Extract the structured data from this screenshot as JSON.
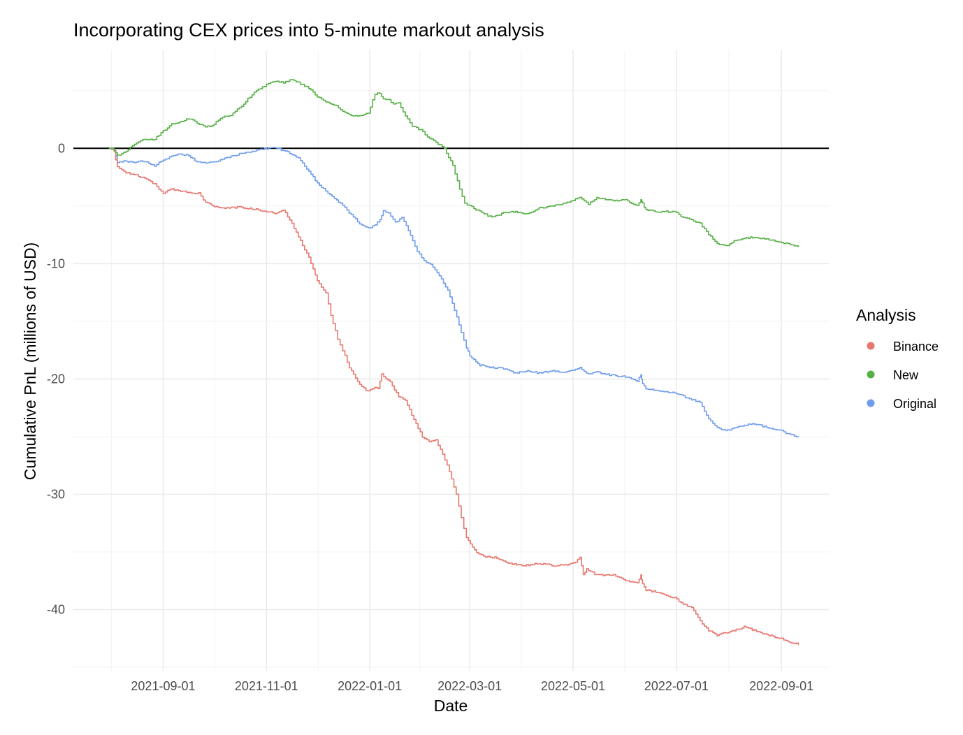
{
  "chart_data": {
    "type": "line",
    "title": "Incorporating CEX prices into 5-minute markout analysis",
    "xlabel": "Date",
    "ylabel": "Cumulative PnL (millions of USD)",
    "x_ticks": [
      "2021-09-01",
      "2021-11-01",
      "2022-01-01",
      "2022-03-01",
      "2022-05-01",
      "2022-07-01",
      "2022-09-01"
    ],
    "y_ticks": [
      0,
      -10,
      -20,
      -30,
      -40
    ],
    "xlim": [
      "2021-07-10",
      "2022-09-29"
    ],
    "ylim": [
      -45.3,
      8.5
    ],
    "hline": 0,
    "legend": {
      "title": "Analysis",
      "position": "right"
    },
    "series": [
      {
        "name": "Binance",
        "color": "#E8776F",
        "x": [
          "2021-07-31",
          "2021-08-03",
          "2021-08-05",
          "2021-08-10",
          "2021-08-20",
          "2021-08-27",
          "2021-09-01",
          "2021-09-05",
          "2021-09-15",
          "2021-09-22",
          "2021-09-26",
          "2021-10-01",
          "2021-10-06",
          "2021-10-16",
          "2021-10-26",
          "2021-11-01",
          "2021-11-06",
          "2021-11-11",
          "2021-11-16",
          "2021-11-21",
          "2021-11-26",
          "2021-12-01",
          "2021-12-06",
          "2021-12-09",
          "2021-12-13",
          "2021-12-16",
          "2021-12-20",
          "2021-12-26",
          "2021-12-31",
          "2022-01-04",
          "2022-01-06",
          "2022-01-08",
          "2022-01-13",
          "2022-01-18",
          "2022-01-22",
          "2022-01-27",
          "2022-02-01",
          "2022-02-05",
          "2022-02-09",
          "2022-02-13",
          "2022-02-17",
          "2022-02-21",
          "2022-02-24",
          "2022-02-27",
          "2022-03-05",
          "2022-03-09",
          "2022-03-17",
          "2022-03-25",
          "2022-04-01",
          "2022-04-11",
          "2022-04-21",
          "2022-05-01",
          "2022-05-05",
          "2022-05-07",
          "2022-05-09",
          "2022-05-15",
          "2022-05-25",
          "2022-06-01",
          "2022-06-08",
          "2022-06-10",
          "2022-06-11",
          "2022-06-13",
          "2022-06-20",
          "2022-06-30",
          "2022-07-05",
          "2022-07-10",
          "2022-07-15",
          "2022-07-20",
          "2022-07-25",
          "2022-07-30",
          "2022-08-04",
          "2022-08-10",
          "2022-08-16",
          "2022-08-21",
          "2022-08-27",
          "2022-09-01",
          "2022-09-05",
          "2022-09-11"
        ],
        "values": [
          0,
          -0.3,
          -1.6,
          -2.1,
          -2.5,
          -3.1,
          -3.9,
          -3.5,
          -3.8,
          -3.9,
          -4.7,
          -5.0,
          -5.2,
          -5.1,
          -5.3,
          -5.5,
          -5.6,
          -5.3,
          -6.5,
          -8.0,
          -9.5,
          -11.5,
          -12.5,
          -14.5,
          -16.5,
          -17.5,
          -19.0,
          -20.5,
          -21.1,
          -20.7,
          -20.9,
          -19.6,
          -20.3,
          -21.5,
          -21.9,
          -23.5,
          -25.0,
          -25.5,
          -25.3,
          -26.5,
          -28.0,
          -30.0,
          -32.0,
          -33.8,
          -35.0,
          -35.4,
          -35.5,
          -36.0,
          -36.2,
          -36.0,
          -36.2,
          -36.0,
          -35.5,
          -37.0,
          -36.5,
          -37.0,
          -37.0,
          -37.5,
          -37.7,
          -37.0,
          -37.8,
          -38.3,
          -38.5,
          -39.0,
          -39.5,
          -39.8,
          -41.0,
          -41.8,
          -42.2,
          -42.0,
          -41.8,
          -41.5,
          -41.8,
          -42.1,
          -42.3,
          -42.5,
          -42.8,
          -43.0
        ]
      },
      {
        "name": "New",
        "color": "#57B046",
        "x": [
          "2021-07-31",
          "2021-08-03",
          "2021-08-05",
          "2021-08-10",
          "2021-08-15",
          "2021-08-20",
          "2021-08-27",
          "2021-09-01",
          "2021-09-06",
          "2021-09-11",
          "2021-09-16",
          "2021-09-21",
          "2021-09-26",
          "2021-10-01",
          "2021-10-06",
          "2021-10-11",
          "2021-10-16",
          "2021-10-21",
          "2021-10-26",
          "2021-11-01",
          "2021-11-06",
          "2021-11-11",
          "2021-11-16",
          "2021-11-21",
          "2021-11-26",
          "2021-12-01",
          "2021-12-06",
          "2021-12-11",
          "2021-12-16",
          "2021-12-21",
          "2021-12-26",
          "2021-12-31",
          "2022-01-04",
          "2022-01-07",
          "2022-01-09",
          "2022-01-12",
          "2022-01-15",
          "2022-01-18",
          "2022-01-22",
          "2022-01-26",
          "2022-01-31",
          "2022-02-04",
          "2022-02-09",
          "2022-02-14",
          "2022-02-19",
          "2022-02-23",
          "2022-02-26",
          "2022-03-01",
          "2022-03-07",
          "2022-03-14",
          "2022-03-21",
          "2022-03-28",
          "2022-04-04",
          "2022-04-11",
          "2022-04-18",
          "2022-04-25",
          "2022-05-01",
          "2022-05-05",
          "2022-05-10",
          "2022-05-15",
          "2022-05-20",
          "2022-05-25",
          "2022-06-01",
          "2022-06-08",
          "2022-06-10",
          "2022-06-11",
          "2022-06-13",
          "2022-06-20",
          "2022-06-30",
          "2022-07-05",
          "2022-07-10",
          "2022-07-15",
          "2022-07-20",
          "2022-07-25",
          "2022-07-30",
          "2022-08-04",
          "2022-08-10",
          "2022-08-16",
          "2022-08-21",
          "2022-08-27",
          "2022-09-01",
          "2022-09-05",
          "2022-09-11"
        ],
        "values": [
          0,
          -0.1,
          -0.6,
          -0.3,
          0.4,
          0.7,
          0.8,
          1.5,
          2.1,
          2.3,
          2.6,
          2.2,
          1.8,
          2.1,
          2.7,
          2.9,
          3.5,
          4.3,
          5.0,
          5.5,
          5.8,
          5.7,
          6.0,
          5.6,
          5.2,
          4.5,
          4.0,
          3.8,
          3.2,
          2.9,
          2.8,
          3.1,
          4.7,
          4.8,
          4.3,
          4.2,
          3.8,
          4.0,
          2.8,
          1.9,
          1.6,
          1.0,
          0.5,
          0.0,
          -1.5,
          -3.5,
          -4.8,
          -5.0,
          -5.5,
          -6.0,
          -5.6,
          -5.5,
          -5.7,
          -5.2,
          -5.0,
          -4.8,
          -4.5,
          -4.2,
          -4.8,
          -4.3,
          -4.4,
          -4.5,
          -4.5,
          -5.0,
          -4.5,
          -4.8,
          -5.3,
          -5.5,
          -5.5,
          -6.0,
          -6.2,
          -6.5,
          -7.5,
          -8.2,
          -8.5,
          -8.0,
          -7.8,
          -7.7,
          -7.8,
          -8.0,
          -8.2,
          -8.3,
          -8.5
        ]
      },
      {
        "name": "Original",
        "color": "#6F9CEC",
        "x": [
          "2021-07-31",
          "2021-08-03",
          "2021-08-05",
          "2021-08-10",
          "2021-08-15",
          "2021-08-20",
          "2021-08-27",
          "2021-09-01",
          "2021-09-06",
          "2021-09-11",
          "2021-09-16",
          "2021-09-21",
          "2021-09-26",
          "2021-10-01",
          "2021-10-06",
          "2021-10-11",
          "2021-10-16",
          "2021-10-21",
          "2021-10-26",
          "2021-11-01",
          "2021-11-06",
          "2021-11-11",
          "2021-11-16",
          "2021-11-21",
          "2021-11-26",
          "2021-12-01",
          "2021-12-06",
          "2021-12-11",
          "2021-12-16",
          "2021-12-21",
          "2021-12-26",
          "2021-12-31",
          "2022-01-04",
          "2022-01-07",
          "2022-01-09",
          "2022-01-12",
          "2022-01-16",
          "2022-01-20",
          "2022-01-25",
          "2022-01-29",
          "2022-02-02",
          "2022-02-06",
          "2022-02-11",
          "2022-02-16",
          "2022-02-20",
          "2022-02-24",
          "2022-02-27",
          "2022-03-01",
          "2022-03-07",
          "2022-03-14",
          "2022-03-21",
          "2022-03-28",
          "2022-04-04",
          "2022-04-11",
          "2022-04-18",
          "2022-04-25",
          "2022-05-01",
          "2022-05-05",
          "2022-05-10",
          "2022-05-15",
          "2022-05-20",
          "2022-05-25",
          "2022-06-01",
          "2022-06-08",
          "2022-06-10",
          "2022-06-11",
          "2022-06-13",
          "2022-06-20",
          "2022-06-30",
          "2022-07-05",
          "2022-07-10",
          "2022-07-15",
          "2022-07-20",
          "2022-07-25",
          "2022-07-30",
          "2022-08-04",
          "2022-08-10",
          "2022-08-16",
          "2022-08-21",
          "2022-08-27",
          "2022-09-01",
          "2022-09-05",
          "2022-09-11"
        ],
        "values": [
          0,
          -0.2,
          -1.2,
          -1.1,
          -1.2,
          -1.1,
          -1.5,
          -1.0,
          -0.7,
          -0.5,
          -0.6,
          -1.2,
          -1.3,
          -1.2,
          -0.9,
          -0.7,
          -0.5,
          -0.3,
          -0.2,
          0.0,
          0.1,
          -0.2,
          -0.5,
          -1.0,
          -2.0,
          -3.0,
          -3.7,
          -4.4,
          -4.9,
          -5.8,
          -6.5,
          -6.9,
          -6.7,
          -6.2,
          -5.4,
          -5.6,
          -6.4,
          -6.0,
          -7.5,
          -8.9,
          -9.7,
          -10.1,
          -11.0,
          -12.3,
          -14.0,
          -16.0,
          -17.3,
          -18.0,
          -18.8,
          -19.0,
          -19.1,
          -19.5,
          -19.3,
          -19.5,
          -19.3,
          -19.4,
          -19.3,
          -19.0,
          -19.6,
          -19.4,
          -19.6,
          -19.7,
          -19.8,
          -20.2,
          -19.6,
          -20.4,
          -20.8,
          -21.0,
          -21.2,
          -21.5,
          -21.8,
          -22.0,
          -23.5,
          -24.2,
          -24.5,
          -24.3,
          -24.0,
          -23.9,
          -24.1,
          -24.3,
          -24.5,
          -24.8,
          -25.0
        ]
      }
    ]
  }
}
